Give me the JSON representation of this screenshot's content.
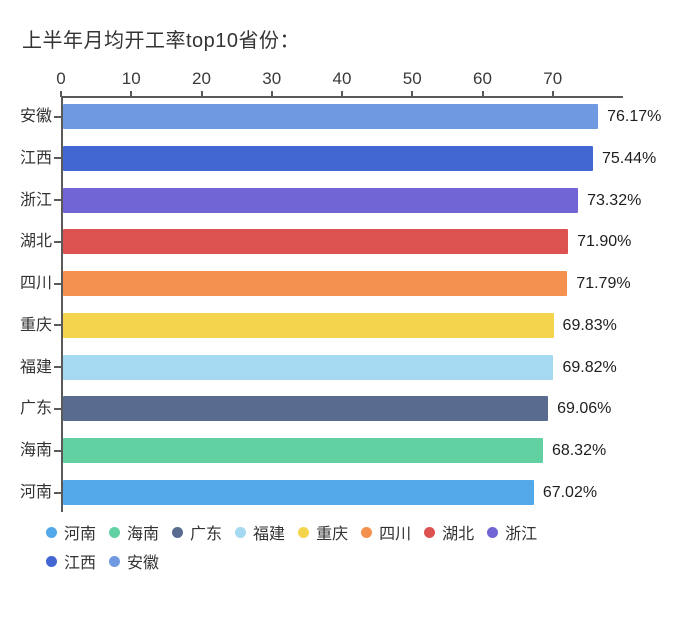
{
  "title": "上半年月均开工率top10省份：",
  "chart_data": {
    "type": "bar",
    "orientation": "horizontal",
    "title": "上半年月均开工率top10省份：",
    "categories": [
      "安徽",
      "江西",
      "浙江",
      "湖北",
      "四川",
      "重庆",
      "福建",
      "广东",
      "海南",
      "河南"
    ],
    "values": [
      76.17,
      75.44,
      73.32,
      71.9,
      71.79,
      69.83,
      69.82,
      69.06,
      68.32,
      67.02
    ],
    "value_labels": [
      "76.17%",
      "75.44%",
      "73.32%",
      "71.90%",
      "71.79%",
      "69.83%",
      "69.82%",
      "69.06%",
      "68.32%",
      "67.02%"
    ],
    "bar_colors": [
      "#6F9AE2",
      "#4266D2",
      "#7165D6",
      "#DC5250",
      "#F4914E",
      "#F5D44D",
      "#A5D8F1",
      "#596C90",
      "#61D1A1",
      "#53A8EA"
    ],
    "xlim": [
      0,
      80
    ],
    "x_ticks": [
      0,
      10,
      20,
      30,
      40,
      50,
      60,
      70
    ],
    "xlabel": "",
    "ylabel": "",
    "grid": false,
    "legend_position": "bottom-left",
    "legend": [
      {
        "label": "河南",
        "color": "#53A8EA"
      },
      {
        "label": "海南",
        "color": "#61D1A1"
      },
      {
        "label": "广东",
        "color": "#596C90"
      },
      {
        "label": "福建",
        "color": "#A5D8F1"
      },
      {
        "label": "重庆",
        "color": "#F5D44D"
      },
      {
        "label": "四川",
        "color": "#F4914E"
      },
      {
        "label": "湖北",
        "color": "#DC5250"
      },
      {
        "label": "浙江",
        "color": "#7165D6"
      },
      {
        "label": "江西",
        "color": "#4266D2"
      },
      {
        "label": "安徽",
        "color": "#6F9AE2"
      }
    ]
  },
  "colors": {
    "background": "#ffffff",
    "axis": "#5a5a5a",
    "text": "#333333"
  }
}
